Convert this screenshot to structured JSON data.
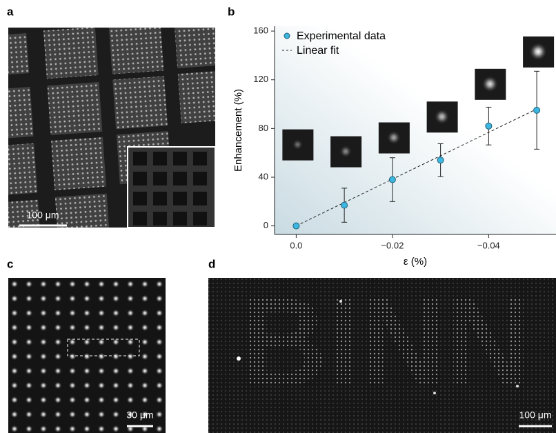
{
  "panels": [
    {
      "label": "a",
      "scale_bar": "100 μm"
    },
    {
      "label": "b"
    },
    {
      "label": "c",
      "scale_bar": "30 μm"
    },
    {
      "label": "d",
      "scale_bar": "100 μm",
      "image_text": "BINN"
    }
  ],
  "chart_data": {
    "type": "scatter",
    "xlabel": "ε (%)",
    "ylabel": "Enhancement (%)",
    "x": [
      0,
      -0.01,
      -0.02,
      -0.03,
      -0.04,
      -0.05
    ],
    "series": [
      {
        "name": "Experimental data",
        "color": "#3db6e0",
        "values": [
          0,
          17,
          38,
          54,
          82,
          95
        ],
        "errors": [
          0,
          14,
          18,
          13.5,
          15.5,
          32
        ]
      }
    ],
    "fit": {
      "name": "Linear fit",
      "x": [
        0,
        -0.05
      ],
      "values": [
        0,
        96
      ]
    },
    "xlim": [
      0.0045,
      -0.054
    ],
    "xticks": [
      {
        "value": 0,
        "label": "0.0"
      },
      {
        "value": -0.02,
        "label": "−0.02"
      },
      {
        "value": -0.04,
        "label": "−0.04"
      }
    ],
    "ylim": [
      -7,
      164
    ],
    "yticks": [
      0,
      40,
      80,
      120,
      160
    ]
  }
}
